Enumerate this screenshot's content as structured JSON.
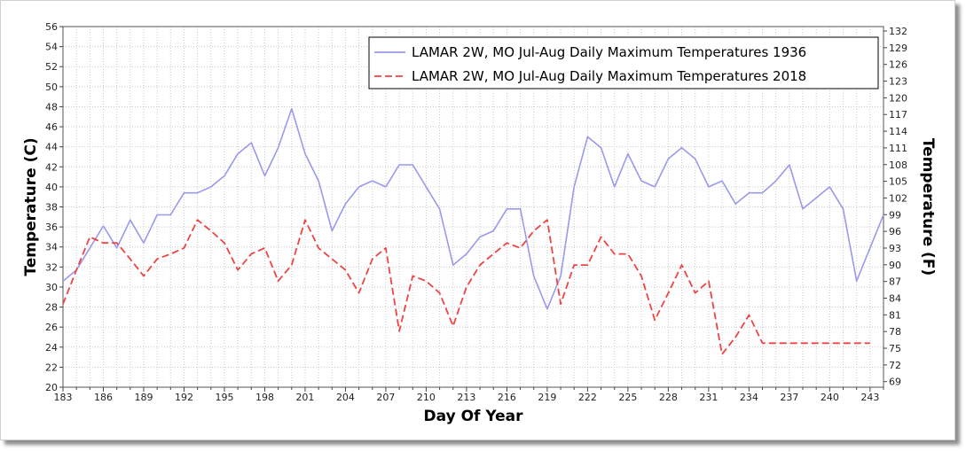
{
  "chart_data": {
    "type": "line",
    "xlabel": "Day Of Year",
    "ylabel_left": "Temperature (C)",
    "ylabel_right": "Temperature (F)",
    "xlim": [
      183,
      244
    ],
    "xticks": [
      183,
      186,
      189,
      192,
      195,
      198,
      201,
      204,
      207,
      210,
      213,
      216,
      219,
      222,
      225,
      228,
      231,
      234,
      237,
      240,
      243
    ],
    "ylim_left": [
      20,
      56
    ],
    "yticks_left": [
      20,
      22,
      24,
      26,
      28,
      30,
      32,
      34,
      36,
      38,
      40,
      42,
      44,
      46,
      48,
      50,
      52,
      54,
      56
    ],
    "ylim_right": [
      68,
      132.8
    ],
    "yticks_right": [
      69,
      72,
      75,
      78,
      81,
      84,
      87,
      90,
      93,
      96,
      99,
      102,
      105,
      108,
      111,
      114,
      117,
      120,
      123,
      126,
      129,
      132
    ],
    "grid": true,
    "legend_position": "top-right",
    "series": [
      {
        "name": "LAMAR 2W, MO  Jul-Aug  Daily Maximum Temperatures 1936",
        "color": "#9999ee",
        "style": "solid",
        "x": [
          183,
          184,
          185,
          186,
          187,
          188,
          189,
          190,
          191,
          192,
          193,
          194,
          195,
          196,
          197,
          198,
          199,
          200,
          201,
          202,
          203,
          204,
          205,
          206,
          207,
          208,
          209,
          210,
          211,
          212,
          213,
          214,
          215,
          216,
          217,
          218,
          219,
          220,
          221,
          222,
          223,
          224,
          225,
          226,
          227,
          228,
          229,
          230,
          231,
          232,
          233,
          234,
          235,
          236,
          237,
          238,
          239,
          240,
          241,
          242,
          243,
          244
        ],
        "values": [
          30.6,
          31.7,
          33.9,
          36.1,
          33.9,
          36.7,
          34.4,
          37.2,
          37.2,
          39.4,
          39.4,
          40.0,
          41.1,
          43.3,
          44.4,
          41.1,
          43.9,
          47.8,
          43.3,
          40.6,
          35.6,
          38.3,
          40.0,
          40.6,
          40.0,
          42.2,
          42.2,
          40.0,
          37.8,
          32.2,
          33.3,
          35.0,
          35.6,
          37.8,
          37.8,
          31.1,
          27.8,
          31.1,
          40.0,
          45.0,
          43.9,
          40.0,
          43.3,
          40.6,
          40.0,
          42.8,
          43.9,
          42.8,
          40.0,
          40.6,
          38.3,
          39.4,
          39.4,
          40.6,
          42.2,
          37.8,
          38.9,
          40.0,
          37.8,
          30.6,
          33.9,
          37.2
        ]
      },
      {
        "name": "LAMAR 2W, MO  Jul-Aug  Daily Maximum Temperatures 2018",
        "color": "#ee4444",
        "style": "dashed",
        "x": [
          183,
          184,
          185,
          186,
          187,
          188,
          189,
          190,
          191,
          192,
          193,
          194,
          195,
          196,
          197,
          198,
          199,
          200,
          201,
          202,
          203,
          204,
          205,
          206,
          207,
          208,
          209,
          210,
          211,
          212,
          213,
          214,
          215,
          216,
          217,
          218,
          219,
          220,
          221,
          222,
          223,
          224,
          225,
          226,
          227,
          228,
          229,
          230,
          231,
          232,
          233,
          234,
          235,
          236,
          237,
          238,
          239,
          240,
          241,
          242,
          243
        ],
        "values": [
          28.3,
          31.7,
          35.0,
          34.4,
          34.4,
          32.8,
          31.1,
          32.8,
          33.3,
          33.9,
          36.7,
          35.6,
          34.4,
          31.7,
          33.3,
          33.9,
          30.6,
          32.2,
          36.7,
          33.9,
          32.8,
          31.7,
          29.4,
          32.8,
          33.9,
          25.6,
          31.1,
          30.6,
          29.4,
          26.1,
          30.0,
          32.2,
          33.3,
          34.4,
          33.9,
          35.6,
          36.7,
          28.3,
          32.2,
          32.2,
          35.0,
          33.3,
          33.3,
          31.1,
          26.7,
          29.4,
          32.2,
          29.4,
          30.6,
          23.3,
          25.0,
          27.2,
          24.4,
          24.4,
          24.4,
          24.4,
          24.4,
          24.4,
          24.4,
          24.4,
          24.4
        ]
      }
    ]
  }
}
